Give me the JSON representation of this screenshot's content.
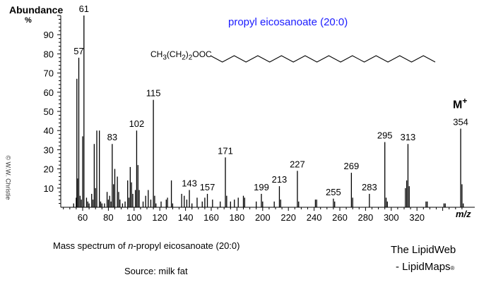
{
  "chart_data": {
    "type": "bar",
    "title": "propyl eicosanoate  (20:0)",
    "ylabel": "Abundance",
    "ylabel_unit": "%",
    "xlabel": "m/z",
    "xlim": [
      40,
      360
    ],
    "ylim": [
      0,
      100
    ],
    "x_ticks": [
      60,
      80,
      100,
      120,
      140,
      160,
      180,
      200,
      220,
      240,
      260,
      280,
      300,
      320
    ],
    "y_ticks": [
      10,
      20,
      30,
      40,
      50,
      60,
      70,
      80,
      90
    ],
    "grid": false,
    "bar_color": "#000000",
    "label_color": "#000000",
    "peaks": [
      [
        53,
        2
      ],
      [
        55,
        5
      ],
      [
        55.5,
        67
      ],
      [
        56,
        15
      ],
      [
        57,
        78
      ],
      [
        58,
        6
      ],
      [
        59,
        4
      ],
      [
        60,
        37
      ],
      [
        61,
        100
      ],
      [
        63,
        5
      ],
      [
        64,
        3
      ],
      [
        65,
        2
      ],
      [
        67,
        7
      ],
      [
        68,
        4
      ],
      [
        69,
        33
      ],
      [
        70,
        10
      ],
      [
        71,
        40
      ],
      [
        73,
        40
      ],
      [
        74,
        3
      ],
      [
        75,
        2
      ],
      [
        77,
        2
      ],
      [
        79,
        8
      ],
      [
        80,
        4
      ],
      [
        81,
        6
      ],
      [
        82,
        3
      ],
      [
        83,
        33
      ],
      [
        84,
        12
      ],
      [
        85,
        20
      ],
      [
        87,
        16
      ],
      [
        88,
        8
      ],
      [
        89,
        4
      ],
      [
        91,
        2
      ],
      [
        93,
        3
      ],
      [
        95,
        14
      ],
      [
        96,
        5
      ],
      [
        97,
        21
      ],
      [
        98,
        13
      ],
      [
        99,
        7
      ],
      [
        101,
        9
      ],
      [
        102,
        40
      ],
      [
        103,
        22
      ],
      [
        104,
        9
      ],
      [
        107,
        3
      ],
      [
        109,
        6
      ],
      [
        111,
        9
      ],
      [
        113,
        4
      ],
      [
        115,
        56
      ],
      [
        116,
        6
      ],
      [
        117,
        2
      ],
      [
        121,
        3
      ],
      [
        125,
        4
      ],
      [
        126,
        5
      ],
      [
        129,
        14
      ],
      [
        130,
        2
      ],
      [
        137,
        7
      ],
      [
        139,
        6
      ],
      [
        141,
        4
      ],
      [
        143,
        9
      ],
      [
        145,
        2
      ],
      [
        149,
        5
      ],
      [
        153,
        3
      ],
      [
        155,
        5
      ],
      [
        157,
        7
      ],
      [
        161,
        4
      ],
      [
        167,
        3
      ],
      [
        171,
        26
      ],
      [
        172,
        6
      ],
      [
        175,
        3
      ],
      [
        178,
        4
      ],
      [
        181,
        5
      ],
      [
        185,
        6
      ],
      [
        186,
        5
      ],
      [
        195,
        3
      ],
      [
        199,
        7
      ],
      [
        200,
        3
      ],
      [
        209,
        3
      ],
      [
        213,
        11
      ],
      [
        214,
        4
      ],
      [
        227,
        19
      ],
      [
        228,
        3
      ],
      [
        241,
        4
      ],
      [
        242,
        4
      ],
      [
        255,
        4.5
      ],
      [
        256,
        3
      ],
      [
        269,
        18
      ],
      [
        270,
        5
      ],
      [
        283,
        7
      ],
      [
        295,
        34
      ],
      [
        296,
        5
      ],
      [
        297,
        3
      ],
      [
        311,
        10
      ],
      [
        312,
        14
      ],
      [
        313,
        33
      ],
      [
        314,
        11
      ],
      [
        327,
        3
      ],
      [
        328,
        3
      ],
      [
        341,
        2
      ],
      [
        342,
        2
      ],
      [
        354,
        41
      ],
      [
        355,
        12
      ],
      [
        356,
        2
      ]
    ],
    "labelled_peaks": [
      {
        "mz": 57,
        "label": "57"
      },
      {
        "mz": 61,
        "label": "61"
      },
      {
        "mz": 83,
        "label": "83"
      },
      {
        "mz": 102,
        "label": "102"
      },
      {
        "mz": 115,
        "label": "115"
      },
      {
        "mz": 143,
        "label": "143"
      },
      {
        "mz": 157,
        "label": "157"
      },
      {
        "mz": 171,
        "label": "171"
      },
      {
        "mz": 199,
        "label": "199"
      },
      {
        "mz": 213,
        "label": "213"
      },
      {
        "mz": 227,
        "label": "227"
      },
      {
        "mz": 255,
        "label": "255"
      },
      {
        "mz": 269,
        "label": "269"
      },
      {
        "mz": 283,
        "label": "283"
      },
      {
        "mz": 295,
        "label": "295"
      },
      {
        "mz": 313,
        "label": "313"
      },
      {
        "mz": 354,
        "label": "354"
      }
    ],
    "annotations": {
      "molecular_ion": "M",
      "molecular_ion_charge": "+",
      "formula": "CH3(CH2)2OOC",
      "formula_parts": [
        "CH",
        "3",
        "(CH",
        "2",
        ")",
        "2",
        "OOC"
      ]
    }
  },
  "caption": {
    "prefix": "Mass spectrum of ",
    "italic": "n",
    "rest": "-propyl eicosanoate  (20:0)"
  },
  "source": "Source: milk fat",
  "copyright": "© W.W. Christie",
  "branding": {
    "line1": "The LipidWeb",
    "line2": "- LipidMaps",
    "mark": "®"
  }
}
